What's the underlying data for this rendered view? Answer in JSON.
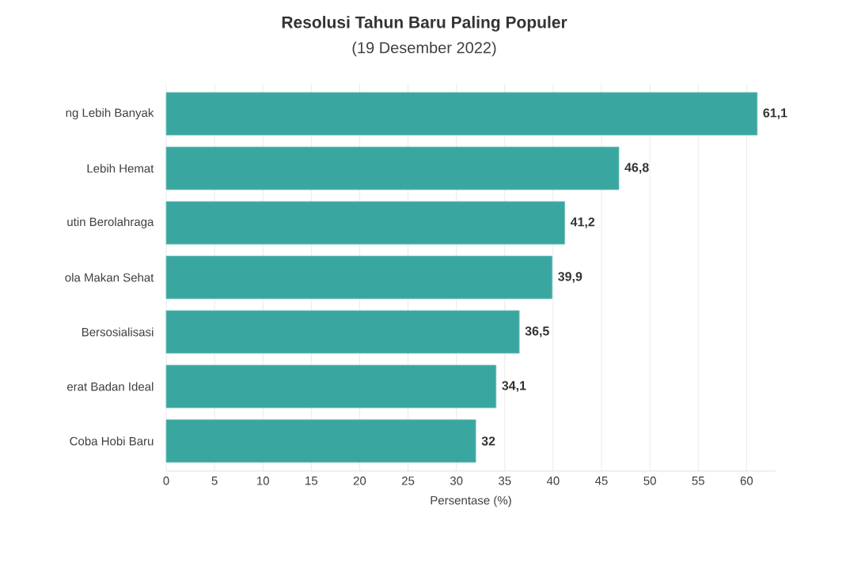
{
  "chart_data": {
    "type": "bar",
    "orientation": "horizontal",
    "title": "Resolusi Tahun Baru Paling Populer",
    "subtitle": "(19 Desember 2022)",
    "xlabel": "Persentase (%)",
    "categories": [
      "ng Lebih Banyak",
      "Lebih Hemat",
      "utin Berolahraga",
      "ola Makan Sehat",
      "Bersosialisasi",
      "erat Badan Ideal",
      "Coba Hobi Baru"
    ],
    "values": [
      61.1,
      46.8,
      41.2,
      39.9,
      36.5,
      34.1,
      32
    ],
    "value_labels": [
      "61,1",
      "46,8",
      "41,2",
      "39,9",
      "36,5",
      "34,1",
      "32"
    ],
    "color": "#3aa6a0",
    "xlim": [
      0,
      63
    ],
    "xticks": [
      0,
      5,
      10,
      15,
      20,
      25,
      30,
      35,
      40,
      45,
      50,
      55,
      60
    ],
    "grid": "x"
  }
}
